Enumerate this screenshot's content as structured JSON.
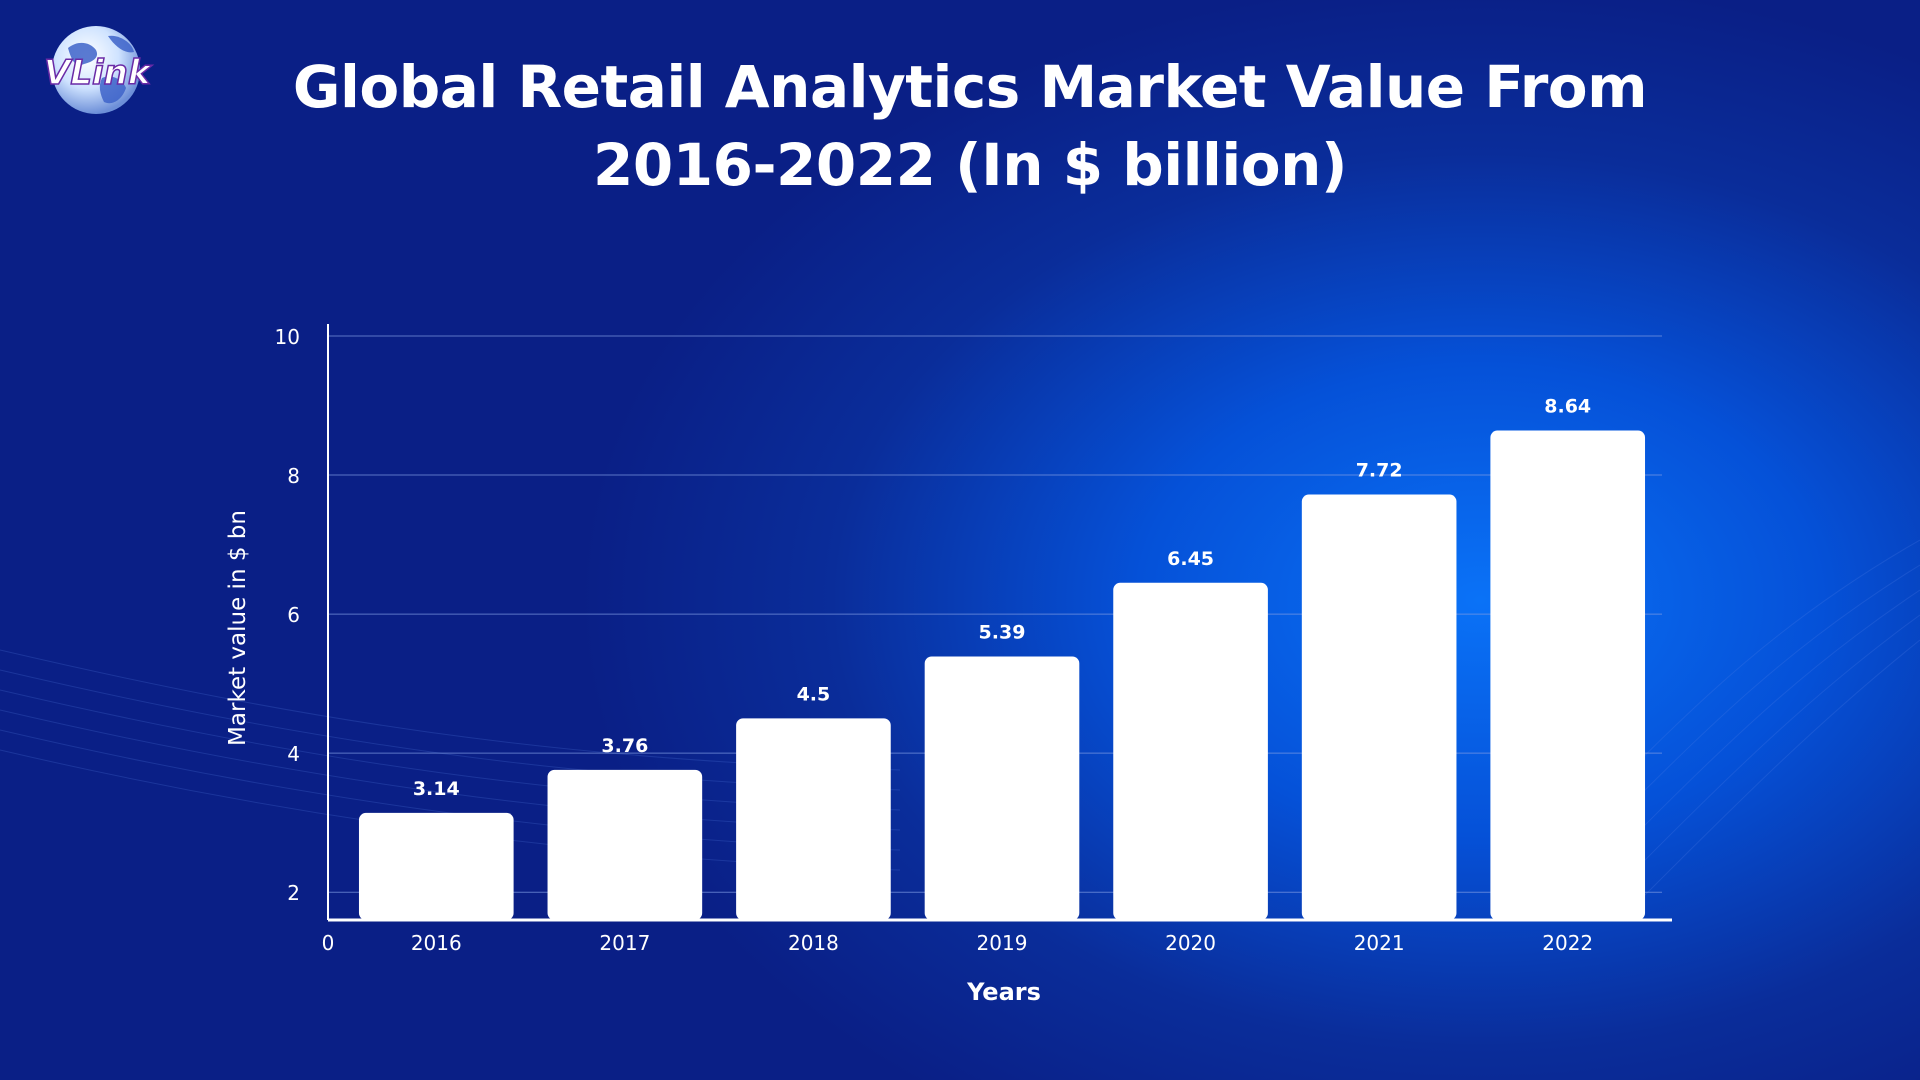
{
  "logo": {
    "text": "VLink"
  },
  "colors": {
    "bar": "#ffffff",
    "text": "#ffffff",
    "grid": "#7f9be3",
    "axis": "#ffffff"
  },
  "chart_data": {
    "type": "bar",
    "title_lines": [
      "Global Retail Analytics Market Value From",
      "2016-2022 (In $ billion)"
    ],
    "xlabel": "Years",
    "ylabel": "Market value in $ bn",
    "categories": [
      "2016",
      "2017",
      "2018",
      "2019",
      "2020",
      "2021",
      "2022"
    ],
    "values": [
      3.14,
      3.76,
      4.5,
      5.39,
      6.45,
      7.72,
      8.64
    ],
    "data_labels": [
      "3.14",
      "3.76",
      "4.5",
      "5.39",
      "6.45",
      "7.72",
      "8.64"
    ],
    "y_ticks": [
      "2",
      "4",
      "6",
      "8",
      "10"
    ],
    "x_origin_label": "0",
    "ylim": [
      1.6,
      10
    ],
    "grid": true,
    "legend": "none"
  }
}
